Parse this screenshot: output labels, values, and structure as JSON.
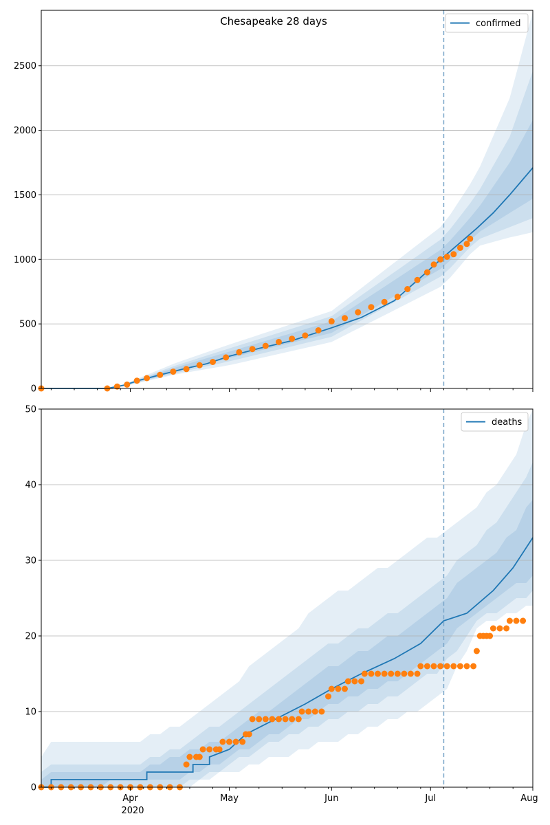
{
  "title": "Chesapeake 28 days",
  "colors": {
    "model": "#1f77b4",
    "observed": "#ff7f0e",
    "band": "#1f77b4",
    "grid": "#b0b0b0",
    "cutoff": "#7aa6c9"
  },
  "x_axis": {
    "start": "2020-03-05",
    "end": "2020-08-01",
    "cutoff": "2020-07-05",
    "year_label": "2020"
  },
  "chart_data": [
    {
      "type": "line",
      "title": "Chesapeake 28 days",
      "legend": {
        "label": "confirmed",
        "placement": "top-right"
      },
      "ylim": [
        0,
        2930
      ],
      "yticks": [
        0,
        500,
        1000,
        1500,
        2000,
        2500
      ],
      "grid": "y",
      "xticks": [
        "Apr",
        "May",
        "Jun",
        "Jul",
        "Aug"
      ],
      "model_curve": [
        [
          "2020-03-05",
          0
        ],
        [
          "2020-03-25",
          0
        ],
        [
          "2020-03-30",
          25
        ],
        [
          "2020-04-04",
          65
        ],
        [
          "2020-04-10",
          105
        ],
        [
          "2020-04-17",
          150
        ],
        [
          "2020-04-24",
          190
        ],
        [
          "2020-05-01",
          250
        ],
        [
          "2020-05-10",
          310
        ],
        [
          "2020-05-20",
          370
        ],
        [
          "2020-06-01",
          470
        ],
        [
          "2020-06-10",
          550
        ],
        [
          "2020-06-20",
          680
        ],
        [
          "2020-06-28",
          860
        ],
        [
          "2020-07-05",
          1020
        ],
        [
          "2020-07-10",
          1130
        ],
        [
          "2020-07-15",
          1240
        ],
        [
          "2020-07-20",
          1360
        ],
        [
          "2020-07-25",
          1500
        ],
        [
          "2020-08-01",
          1710
        ]
      ],
      "bands": [
        {
          "upper": [
            [
              "2020-03-27",
              0
            ],
            [
              "2020-04-15",
              200
            ],
            [
              "2020-05-01",
              340
            ],
            [
              "2020-06-01",
              600
            ],
            [
              "2020-07-05",
              1270
            ],
            [
              "2020-07-15",
              1660
            ],
            [
              "2020-07-25",
              2250
            ],
            [
              "2020-08-01",
              2920
            ]
          ],
          "lower": [
            [
              "2020-03-27",
              0
            ],
            [
              "2020-04-15",
              110
            ],
            [
              "2020-05-01",
              180
            ],
            [
              "2020-06-01",
              360
            ],
            [
              "2020-07-05",
              800
            ],
            [
              "2020-07-15",
              1100
            ],
            [
              "2020-07-25",
              1170
            ],
            [
              "2020-08-01",
              1210
            ]
          ]
        },
        {
          "upper": [
            [
              "2020-03-27",
              0
            ],
            [
              "2020-04-15",
              180
            ],
            [
              "2020-05-01",
              310
            ],
            [
              "2020-06-01",
              560
            ],
            [
              "2020-07-05",
              1170
            ],
            [
              "2020-07-15",
              1500
            ],
            [
              "2020-07-25",
              1950
            ],
            [
              "2020-08-01",
              2460
            ]
          ],
          "lower": [
            [
              "2020-03-27",
              0
            ],
            [
              "2020-04-15",
              120
            ],
            [
              "2020-05-01",
              210
            ],
            [
              "2020-06-01",
              400
            ],
            [
              "2020-07-05",
              880
            ],
            [
              "2020-07-15",
              1150
            ],
            [
              "2020-07-25",
              1250
            ],
            [
              "2020-08-01",
              1320
            ]
          ]
        },
        {
          "upper": [
            [
              "2020-03-27",
              0
            ],
            [
              "2020-04-15",
              165
            ],
            [
              "2020-05-01",
              285
            ],
            [
              "2020-06-01",
              520
            ],
            [
              "2020-07-05",
              1090
            ],
            [
              "2020-07-15",
              1380
            ],
            [
              "2020-07-25",
              1750
            ],
            [
              "2020-08-01",
              2080
            ]
          ],
          "lower": [
            [
              "2020-03-27",
              0
            ],
            [
              "2020-04-15",
              130
            ],
            [
              "2020-05-01",
              235
            ],
            [
              "2020-06-01",
              430
            ],
            [
              "2020-07-05",
              940
            ],
            [
              "2020-07-15",
              1200
            ],
            [
              "2020-07-25",
              1360
            ],
            [
              "2020-08-01",
              1470
            ]
          ]
        }
      ],
      "observed": [
        [
          "2020-03-05",
          0
        ],
        [
          "2020-03-25",
          0
        ],
        [
          "2020-03-28",
          15
        ],
        [
          "2020-03-31",
          30
        ],
        [
          "2020-04-03",
          60
        ],
        [
          "2020-04-06",
          80
        ],
        [
          "2020-04-10",
          105
        ],
        [
          "2020-04-14",
          130
        ],
        [
          "2020-04-18",
          150
        ],
        [
          "2020-04-22",
          180
        ],
        [
          "2020-04-26",
          205
        ],
        [
          "2020-04-30",
          240
        ],
        [
          "2020-05-04",
          280
        ],
        [
          "2020-05-08",
          305
        ],
        [
          "2020-05-12",
          330
        ],
        [
          "2020-05-16",
          360
        ],
        [
          "2020-05-20",
          385
        ],
        [
          "2020-05-24",
          410
        ],
        [
          "2020-05-28",
          450
        ],
        [
          "2020-06-01",
          520
        ],
        [
          "2020-06-05",
          545
        ],
        [
          "2020-06-09",
          590
        ],
        [
          "2020-06-13",
          630
        ],
        [
          "2020-06-17",
          670
        ],
        [
          "2020-06-21",
          710
        ],
        [
          "2020-06-24",
          770
        ],
        [
          "2020-06-27",
          840
        ],
        [
          "2020-06-30",
          900
        ],
        [
          "2020-07-02",
          960
        ],
        [
          "2020-07-04",
          1000
        ],
        [
          "2020-07-06",
          1020
        ],
        [
          "2020-07-08",
          1040
        ],
        [
          "2020-07-10",
          1090
        ],
        [
          "2020-07-12",
          1120
        ],
        [
          "2020-07-13",
          1160
        ]
      ]
    },
    {
      "type": "line",
      "legend": {
        "label": "deaths",
        "placement": "top-right"
      },
      "ylim": [
        0,
        50
      ],
      "yticks": [
        0,
        10,
        20,
        30,
        40,
        50
      ],
      "grid": "y",
      "xticks": [
        "Apr",
        "May",
        "Jun",
        "Jul",
        "Aug"
      ],
      "model_curve": [
        [
          "2020-03-05",
          0
        ],
        [
          "2020-03-08",
          0
        ],
        [
          "2020-03-08",
          1
        ],
        [
          "2020-04-06",
          1
        ],
        [
          "2020-04-06",
          2
        ],
        [
          "2020-04-20",
          2
        ],
        [
          "2020-04-20",
          3
        ],
        [
          "2020-04-25",
          3
        ],
        [
          "2020-04-25",
          4
        ],
        [
          "2020-05-01",
          5
        ],
        [
          "2020-05-06",
          7
        ],
        [
          "2020-05-15",
          9
        ],
        [
          "2020-05-24",
          11
        ],
        [
          "2020-06-01",
          13
        ],
        [
          "2020-06-10",
          15
        ],
        [
          "2020-06-20",
          17
        ],
        [
          "2020-06-28",
          19
        ],
        [
          "2020-07-05",
          22
        ],
        [
          "2020-07-12",
          23
        ],
        [
          "2020-07-20",
          26
        ],
        [
          "2020-07-26",
          29
        ],
        [
          "2020-08-01",
          33
        ]
      ],
      "bands": [
        {
          "upper": [
            [
              "2020-03-05",
              4
            ],
            [
              "2020-03-08",
              6
            ],
            [
              "2020-04-01",
              6
            ],
            [
              "2020-04-15",
              8
            ],
            [
              "2020-05-01",
              13
            ],
            [
              "2020-05-15",
              19
            ],
            [
              "2020-06-01",
              25
            ],
            [
              "2020-06-20",
              30
            ],
            [
              "2020-07-05",
              34
            ],
            [
              "2020-07-15",
              37
            ],
            [
              "2020-07-25",
              42
            ],
            [
              "2020-08-01",
              50
            ]
          ],
          "lower": [
            [
              "2020-03-05",
              0
            ],
            [
              "2020-04-16",
              0
            ],
            [
              "2020-05-01",
              2
            ],
            [
              "2020-05-15",
              4
            ],
            [
              "2020-06-01",
              6
            ],
            [
              "2020-06-20",
              9
            ],
            [
              "2020-07-05",
              12
            ],
            [
              "2020-07-15",
              21
            ],
            [
              "2020-07-25",
              23
            ],
            [
              "2020-08-01",
              24
            ]
          ]
        },
        {
          "upper": [
            [
              "2020-03-05",
              2
            ],
            [
              "2020-03-08",
              3
            ],
            [
              "2020-04-01",
              3
            ],
            [
              "2020-04-15",
              5
            ],
            [
              "2020-05-01",
              9
            ],
            [
              "2020-05-15",
              14
            ],
            [
              "2020-06-01",
              19
            ],
            [
              "2020-06-20",
              23
            ],
            [
              "2020-07-05",
              28
            ],
            [
              "2020-07-15",
              32
            ],
            [
              "2020-07-25",
              37
            ],
            [
              "2020-08-01",
              43
            ]
          ],
          "lower": [
            [
              "2020-03-05",
              0
            ],
            [
              "2020-04-16",
              0
            ],
            [
              "2020-05-01",
              3
            ],
            [
              "2020-05-15",
              6
            ],
            [
              "2020-06-01",
              9
            ],
            [
              "2020-06-20",
              12
            ],
            [
              "2020-07-05",
              16
            ],
            [
              "2020-07-15",
              22
            ],
            [
              "2020-07-25",
              24
            ],
            [
              "2020-08-01",
              26
            ]
          ]
        },
        {
          "upper": [
            [
              "2020-03-05",
              1
            ],
            [
              "2020-03-08",
              2
            ],
            [
              "2020-04-01",
              2
            ],
            [
              "2020-04-15",
              4
            ],
            [
              "2020-05-01",
              7
            ],
            [
              "2020-05-15",
              11
            ],
            [
              "2020-06-01",
              16
            ],
            [
              "2020-06-20",
              20
            ],
            [
              "2020-07-05",
              25
            ],
            [
              "2020-07-15",
              29
            ],
            [
              "2020-07-25",
              33
            ],
            [
              "2020-08-01",
              38
            ]
          ],
          "lower": [
            [
              "2020-03-05",
              0
            ],
            [
              "2020-04-16",
              1
            ],
            [
              "2020-05-01",
              4
            ],
            [
              "2020-05-15",
              7
            ],
            [
              "2020-06-01",
              11
            ],
            [
              "2020-06-20",
              14
            ],
            [
              "2020-07-05",
              19
            ],
            [
              "2020-07-15",
              23
            ],
            [
              "2020-07-25",
              26
            ],
            [
              "2020-08-01",
              28
            ]
          ]
        }
      ],
      "observed": [
        [
          "2020-03-05",
          0
        ],
        [
          "2020-03-08",
          0
        ],
        [
          "2020-03-11",
          0
        ],
        [
          "2020-03-14",
          0
        ],
        [
          "2020-03-17",
          0
        ],
        [
          "2020-03-20",
          0
        ],
        [
          "2020-03-23",
          0
        ],
        [
          "2020-03-26",
          0
        ],
        [
          "2020-03-29",
          0
        ],
        [
          "2020-04-01",
          0
        ],
        [
          "2020-04-04",
          0
        ],
        [
          "2020-04-07",
          0
        ],
        [
          "2020-04-10",
          0
        ],
        [
          "2020-04-13",
          0
        ],
        [
          "2020-04-16",
          0
        ],
        [
          "2020-04-18",
          3
        ],
        [
          "2020-04-19",
          4
        ],
        [
          "2020-04-21",
          4
        ],
        [
          "2020-04-22",
          4
        ],
        [
          "2020-04-23",
          5
        ],
        [
          "2020-04-25",
          5
        ],
        [
          "2020-04-27",
          5
        ],
        [
          "2020-04-28",
          5
        ],
        [
          "2020-04-29",
          6
        ],
        [
          "2020-05-01",
          6
        ],
        [
          "2020-05-03",
          6
        ],
        [
          "2020-05-05",
          6
        ],
        [
          "2020-05-06",
          7
        ],
        [
          "2020-05-07",
          7
        ],
        [
          "2020-05-08",
          9
        ],
        [
          "2020-05-10",
          9
        ],
        [
          "2020-05-12",
          9
        ],
        [
          "2020-05-14",
          9
        ],
        [
          "2020-05-16",
          9
        ],
        [
          "2020-05-18",
          9
        ],
        [
          "2020-05-20",
          9
        ],
        [
          "2020-05-22",
          9
        ],
        [
          "2020-05-23",
          10
        ],
        [
          "2020-05-25",
          10
        ],
        [
          "2020-05-27",
          10
        ],
        [
          "2020-05-29",
          10
        ],
        [
          "2020-05-31",
          12
        ],
        [
          "2020-06-01",
          13
        ],
        [
          "2020-06-03",
          13
        ],
        [
          "2020-06-05",
          13
        ],
        [
          "2020-06-06",
          14
        ],
        [
          "2020-06-08",
          14
        ],
        [
          "2020-06-10",
          14
        ],
        [
          "2020-06-11",
          15
        ],
        [
          "2020-06-13",
          15
        ],
        [
          "2020-06-15",
          15
        ],
        [
          "2020-06-17",
          15
        ],
        [
          "2020-06-19",
          15
        ],
        [
          "2020-06-21",
          15
        ],
        [
          "2020-06-23",
          15
        ],
        [
          "2020-06-25",
          15
        ],
        [
          "2020-06-27",
          15
        ],
        [
          "2020-06-28",
          16
        ],
        [
          "2020-06-30",
          16
        ],
        [
          "2020-07-02",
          16
        ],
        [
          "2020-07-04",
          16
        ],
        [
          "2020-07-06",
          16
        ],
        [
          "2020-07-08",
          16
        ],
        [
          "2020-07-10",
          16
        ],
        [
          "2020-07-12",
          16
        ],
        [
          "2020-07-14",
          16
        ],
        [
          "2020-07-15",
          18
        ],
        [
          "2020-07-16",
          20
        ],
        [
          "2020-07-17",
          20
        ],
        [
          "2020-07-18",
          20
        ],
        [
          "2020-07-19",
          20
        ],
        [
          "2020-07-20",
          21
        ],
        [
          "2020-07-22",
          21
        ],
        [
          "2020-07-24",
          21
        ],
        [
          "2020-07-25",
          22
        ],
        [
          "2020-07-27",
          22
        ],
        [
          "2020-07-29",
          22
        ]
      ]
    }
  ]
}
